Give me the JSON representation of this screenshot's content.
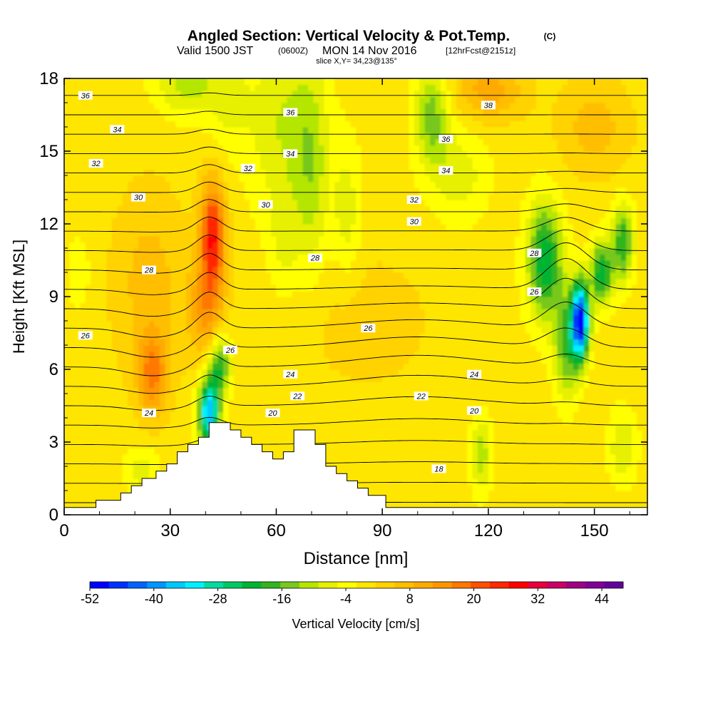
{
  "chart_data": {
    "type": "heatmap",
    "title": "Angled Section: Vertical Velocity & Pot.Temp.",
    "title_unit": "(C)",
    "subtitle": {
      "valid": "Valid 1500 JST",
      "utc": "(0600Z)",
      "date": "MON 14 Nov 2016",
      "forecast": "[12hrFcst@2151z]"
    },
    "slice_label": "slice X,Y= 34,23@135°",
    "xlabel": "Distance [nm]",
    "ylabel": "Height [Kft MSL]",
    "xlim": [
      0,
      165
    ],
    "ylim": [
      0,
      18
    ],
    "x_ticks": [
      "0",
      "30",
      "60",
      "90",
      "120",
      "150"
    ],
    "y_ticks": [
      "0",
      "3",
      "6",
      "9",
      "12",
      "15",
      "18"
    ],
    "colorbar": {
      "label": "Vertical Velocity [cm/s]",
      "tick_labels": [
        "-52",
        "-40",
        "-28",
        "-16",
        "-4",
        "8",
        "20",
        "32",
        "44"
      ],
      "range": [
        -52,
        48
      ],
      "step": 4,
      "colors": [
        "#0000ff",
        "#0032ff",
        "#0064ff",
        "#0096ff",
        "#00c8ff",
        "#00f0ff",
        "#00dca0",
        "#00c864",
        "#00b432",
        "#32b41e",
        "#78c81e",
        "#b4e600",
        "#e6f000",
        "#ffff00",
        "#ffe600",
        "#ffd200",
        "#ffbe00",
        "#ffaa00",
        "#ff9600",
        "#ff7800",
        "#ff5000",
        "#ff2800",
        "#ff0000",
        "#e6003c",
        "#c80064",
        "#a00082",
        "#820096",
        "#64009b"
      ]
    },
    "theta_contour_labels": [
      {
        "value": "36",
        "x": 6,
        "y": 17.3
      },
      {
        "value": "34",
        "x": 15,
        "y": 15.9
      },
      {
        "value": "32",
        "x": 9,
        "y": 14.5
      },
      {
        "value": "30",
        "x": 21,
        "y": 13.1
      },
      {
        "value": "28",
        "x": 24,
        "y": 10.1
      },
      {
        "value": "26",
        "x": 6,
        "y": 7.4
      },
      {
        "value": "24",
        "x": 24,
        "y": 4.2
      },
      {
        "value": "36",
        "x": 64,
        "y": 16.6
      },
      {
        "value": "34",
        "x": 64,
        "y": 14.9
      },
      {
        "value": "32",
        "x": 52,
        "y": 14.3
      },
      {
        "value": "30",
        "x": 57,
        "y": 12.8
      },
      {
        "value": "28",
        "x": 71,
        "y": 10.6
      },
      {
        "value": "26",
        "x": 47,
        "y": 6.8
      },
      {
        "value": "24",
        "x": 64,
        "y": 5.8
      },
      {
        "value": "22",
        "x": 66,
        "y": 4.9
      },
      {
        "value": "20",
        "x": 59,
        "y": 4.2
      },
      {
        "value": "38",
        "x": 120,
        "y": 16.9
      },
      {
        "value": "36",
        "x": 108,
        "y": 15.5
      },
      {
        "value": "34",
        "x": 108,
        "y": 14.2
      },
      {
        "value": "32",
        "x": 99,
        "y": 13.0
      },
      {
        "value": "30",
        "x": 99,
        "y": 12.1
      },
      {
        "value": "28",
        "x": 133,
        "y": 10.8
      },
      {
        "value": "26",
        "x": 133,
        "y": 9.2
      },
      {
        "value": "26",
        "x": 86,
        "y": 7.7
      },
      {
        "value": "24",
        "x": 116,
        "y": 5.8
      },
      {
        "value": "22",
        "x": 101,
        "y": 4.9
      },
      {
        "value": "20",
        "x": 116,
        "y": 4.3
      },
      {
        "value": "18",
        "x": 106,
        "y": 1.9
      }
    ],
    "terrain": [
      [
        0,
        0.3
      ],
      [
        9,
        0.3
      ],
      [
        9,
        0.6
      ],
      [
        16,
        0.6
      ],
      [
        16,
        0.9
      ],
      [
        19,
        0.9
      ],
      [
        19,
        1.2
      ],
      [
        22,
        1.2
      ],
      [
        22,
        1.5
      ],
      [
        26,
        1.5
      ],
      [
        26,
        1.8
      ],
      [
        29,
        1.8
      ],
      [
        29,
        2.1
      ],
      [
        32,
        2.1
      ],
      [
        32,
        2.6
      ],
      [
        35,
        2.6
      ],
      [
        35,
        2.9
      ],
      [
        38,
        2.9
      ],
      [
        38,
        3.2
      ],
      [
        41,
        3.2
      ],
      [
        41,
        3.8
      ],
      [
        47,
        3.8
      ],
      [
        47,
        3.5
      ],
      [
        50,
        3.5
      ],
      [
        50,
        3.2
      ],
      [
        53,
        3.2
      ],
      [
        53,
        2.9
      ],
      [
        56,
        2.9
      ],
      [
        56,
        2.6
      ],
      [
        59,
        2.6
      ],
      [
        59,
        2.3
      ],
      [
        62,
        2.3
      ],
      [
        62,
        2.6
      ],
      [
        65,
        2.6
      ],
      [
        65,
        3.5
      ],
      [
        71,
        3.5
      ],
      [
        71,
        2.9
      ],
      [
        74,
        2.9
      ],
      [
        74,
        2.0
      ],
      [
        77,
        2.0
      ],
      [
        77,
        1.7
      ],
      [
        80,
        1.7
      ],
      [
        80,
        1.4
      ],
      [
        83,
        1.4
      ],
      [
        83,
        1.1
      ],
      [
        86,
        1.1
      ],
      [
        86,
        0.8
      ],
      [
        91,
        0.8
      ],
      [
        91,
        0.3
      ],
      [
        165,
        0.3
      ]
    ]
  }
}
